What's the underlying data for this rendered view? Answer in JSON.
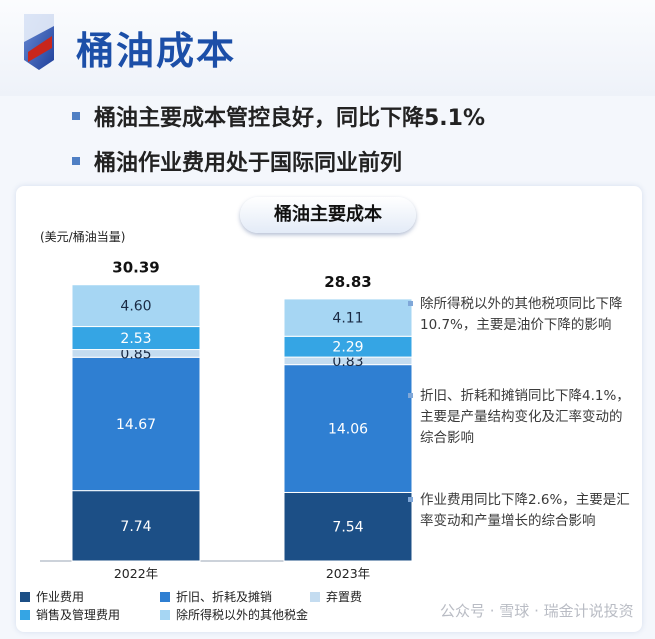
{
  "page": {
    "title": "桶油成本"
  },
  "bullets": [
    "桶油主要成本管控良好，同比下降5.1%",
    "桶油作业费用处于国际同业前列"
  ],
  "watermark": "公众号 · 雪球 · 瑞金计说投资",
  "chart_data": {
    "type": "bar",
    "stacked": true,
    "title": "桶油主要成本",
    "unit_label": "(美元/桶油当量)",
    "categories": [
      "2022年",
      "2023年"
    ],
    "totals": [
      "30.39",
      "28.83"
    ],
    "series": [
      {
        "name": "作业费用",
        "values": [
          7.74,
          7.54
        ],
        "color": "#1c4f86"
      },
      {
        "name": "折旧、折耗及摊销",
        "values": [
          14.67,
          14.06
        ],
        "color": "#2f7fd2"
      },
      {
        "name": "弃置费",
        "values": [
          0.85,
          0.83
        ],
        "color": "#c4dcf0"
      },
      {
        "name": "销售及管理费用",
        "values": [
          2.53,
          2.29
        ],
        "color": "#35a5e4"
      },
      {
        "name": "除所得税以外的其他税金",
        "values": [
          4.6,
          4.11
        ],
        "color": "#a6d6f3"
      }
    ],
    "ylim": [
      0,
      33
    ],
    "annotations": [
      "除所得税以外的其他税项同比下降10.7%，主要是油价下降的影响",
      "折旧、折耗和摊销同比下降4.1%，主要是产量结构变化及汇率变动的综合影响",
      "作业费用同比下降2.6%，主要是汇率变动和产量增长的综合影响"
    ]
  }
}
